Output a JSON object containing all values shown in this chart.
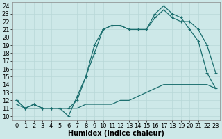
{
  "xlabel": "Humidex (Indice chaleur)",
  "xlim": [
    -0.5,
    23.5
  ],
  "ylim": [
    9.5,
    24.5
  ],
  "xticks": [
    0,
    1,
    2,
    3,
    4,
    5,
    6,
    7,
    8,
    9,
    10,
    11,
    12,
    13,
    14,
    15,
    16,
    17,
    18,
    19,
    20,
    21,
    22,
    23
  ],
  "yticks": [
    10,
    11,
    12,
    13,
    14,
    15,
    16,
    17,
    18,
    19,
    20,
    21,
    22,
    23,
    24
  ],
  "bg_color": "#cde8e8",
  "line_color": "#1a6e6e",
  "grid_color": "#b8d8d8",
  "line1_x": [
    0,
    1,
    2,
    3,
    4,
    5,
    6,
    7,
    8,
    9,
    10,
    11,
    12,
    13,
    14,
    15,
    16,
    17,
    18,
    19,
    20,
    21,
    22,
    23
  ],
  "line1_y": [
    12,
    11,
    11.5,
    11,
    11,
    11,
    10,
    12.5,
    15,
    19,
    21,
    21.5,
    21.5,
    21,
    21,
    21,
    23,
    24,
    23,
    22.5,
    21,
    19.5,
    15.5,
    13.5
  ],
  "line2_x": [
    0,
    1,
    2,
    3,
    4,
    5,
    6,
    7,
    8,
    9,
    10,
    11,
    12,
    13,
    14,
    15,
    16,
    17,
    18,
    19,
    20,
    21,
    22,
    23
  ],
  "line2_y": [
    12,
    11,
    11.5,
    11,
    11,
    11,
    11,
    12,
    15,
    18,
    21,
    21.5,
    21.5,
    21,
    21,
    21,
    22.5,
    23.5,
    22.5,
    22,
    22,
    21,
    19,
    15.5
  ],
  "line3_x": [
    0,
    1,
    2,
    3,
    4,
    5,
    6,
    7,
    8,
    9,
    10,
    11,
    12,
    13,
    14,
    15,
    16,
    17,
    18,
    19,
    20,
    21,
    22,
    23
  ],
  "line3_y": [
    11.5,
    11,
    11,
    11,
    11,
    11,
    11,
    11,
    11.5,
    11.5,
    11.5,
    11.5,
    12,
    12,
    12.5,
    13,
    13.5,
    14,
    14,
    14,
    14,
    14,
    14,
    13.5
  ],
  "font_size": 7,
  "tick_font_size": 6,
  "lw": 0.9,
  "marker_size": 3
}
